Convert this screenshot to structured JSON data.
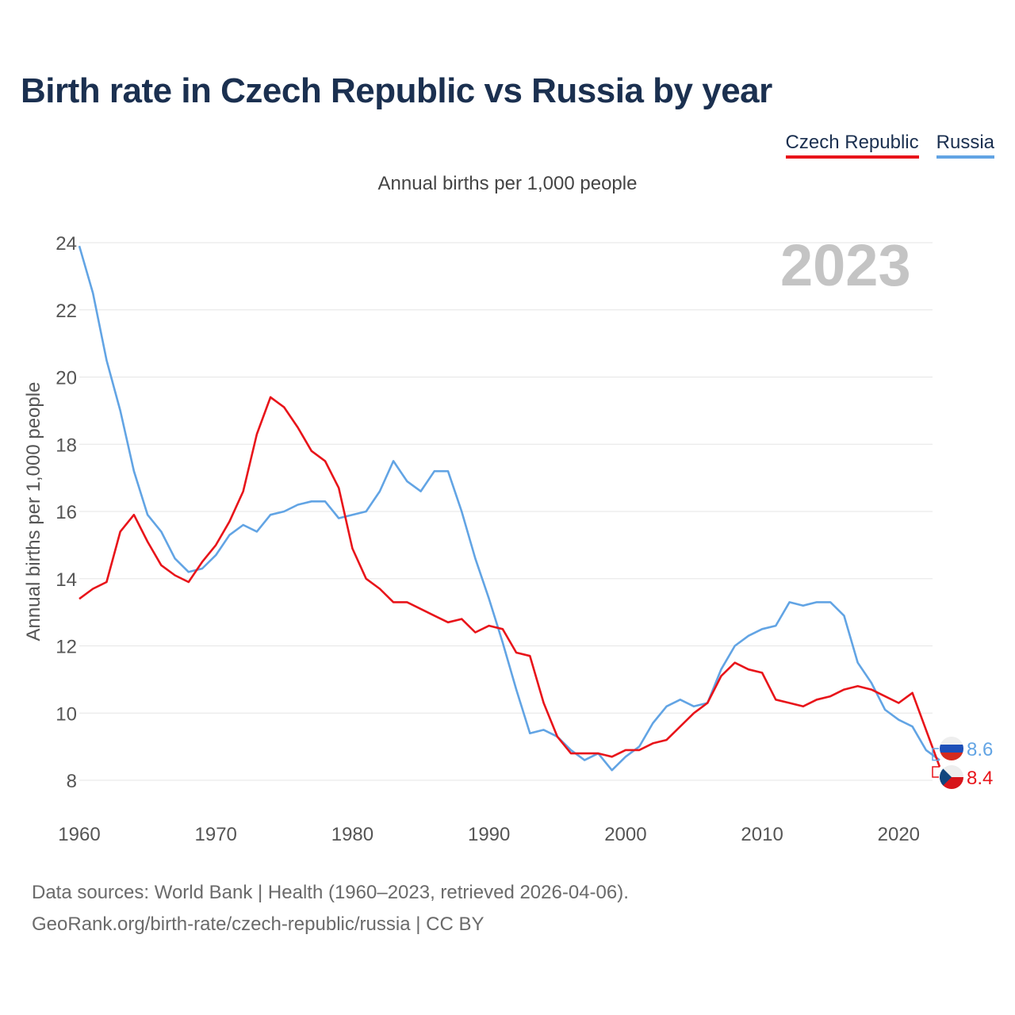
{
  "title": "Birth rate in Czech Republic vs Russia by year",
  "subtitle": "Annual births per 1,000 people",
  "current_year": "2023",
  "legend": [
    {
      "label": "Czech Republic",
      "color": "#e8141a"
    },
    {
      "label": "Russia",
      "color": "#62a4e4"
    }
  ],
  "sources": {
    "line1": "Data sources: World Bank | Health (1960–2023, retrieved 2026-04-06).",
    "line2": "GeoRank.org/birth-rate/czech-republic/russia | CC BY"
  },
  "chart_data": {
    "type": "line",
    "title": "Birth rate in Czech Republic vs Russia by year",
    "xlabel": "",
    "ylabel": "Annual births per 1,000 people",
    "xlim": [
      1960,
      2023
    ],
    "ylim": [
      7,
      24
    ],
    "x_ticks": [
      1960,
      1970,
      1980,
      1990,
      2000,
      2010,
      2020
    ],
    "y_ticks": [
      8,
      10,
      12,
      14,
      16,
      18,
      20,
      22,
      24
    ],
    "grid": true,
    "legend_position": "top-right",
    "x": [
      1960,
      1961,
      1962,
      1963,
      1964,
      1965,
      1966,
      1967,
      1968,
      1969,
      1970,
      1971,
      1972,
      1973,
      1974,
      1975,
      1976,
      1977,
      1978,
      1979,
      1980,
      1981,
      1982,
      1983,
      1984,
      1985,
      1986,
      1987,
      1988,
      1989,
      1990,
      1991,
      1992,
      1993,
      1994,
      1995,
      1996,
      1997,
      1998,
      1999,
      2000,
      2001,
      2002,
      2003,
      2004,
      2005,
      2006,
      2007,
      2008,
      2009,
      2010,
      2011,
      2012,
      2013,
      2014,
      2015,
      2016,
      2017,
      2018,
      2019,
      2020,
      2021,
      2022,
      2023
    ],
    "series": [
      {
        "name": "Czech Republic",
        "color": "#e8141a",
        "end_label": "8.4",
        "values": [
          13.4,
          13.7,
          13.9,
          15.4,
          15.9,
          15.1,
          14.4,
          14.1,
          13.9,
          14.5,
          15.0,
          15.7,
          16.6,
          18.3,
          19.4,
          19.1,
          18.5,
          17.8,
          17.5,
          16.7,
          14.9,
          14.0,
          13.7,
          13.3,
          13.3,
          13.1,
          12.9,
          12.7,
          12.8,
          12.4,
          12.6,
          12.5,
          11.8,
          11.7,
          10.3,
          9.3,
          8.8,
          8.8,
          8.8,
          8.7,
          8.9,
          8.9,
          9.1,
          9.2,
          9.6,
          10.0,
          10.3,
          11.1,
          11.5,
          11.3,
          11.2,
          10.4,
          10.3,
          10.2,
          10.4,
          10.5,
          10.7,
          10.8,
          10.7,
          10.5,
          10.3,
          10.6,
          9.5,
          8.4
        ]
      },
      {
        "name": "Russia",
        "color": "#62a4e4",
        "end_label": "8.6",
        "values": [
          23.9,
          22.5,
          20.5,
          19.0,
          17.2,
          15.9,
          15.4,
          14.6,
          14.2,
          14.3,
          14.7,
          15.3,
          15.6,
          15.4,
          15.9,
          16.0,
          16.2,
          16.3,
          16.3,
          15.8,
          15.9,
          16.0,
          16.6,
          17.5,
          16.9,
          16.6,
          17.2,
          17.2,
          16.0,
          14.6,
          13.4,
          12.1,
          10.7,
          9.4,
          9.5,
          9.3,
          8.9,
          8.6,
          8.8,
          8.3,
          8.7,
          9.0,
          9.7,
          10.2,
          10.4,
          10.2,
          10.3,
          11.3,
          12.0,
          12.3,
          12.5,
          12.6,
          13.3,
          13.2,
          13.3,
          13.3,
          12.9,
          11.5,
          10.9,
          10.1,
          9.8,
          9.6,
          8.9,
          8.6
        ]
      }
    ]
  }
}
